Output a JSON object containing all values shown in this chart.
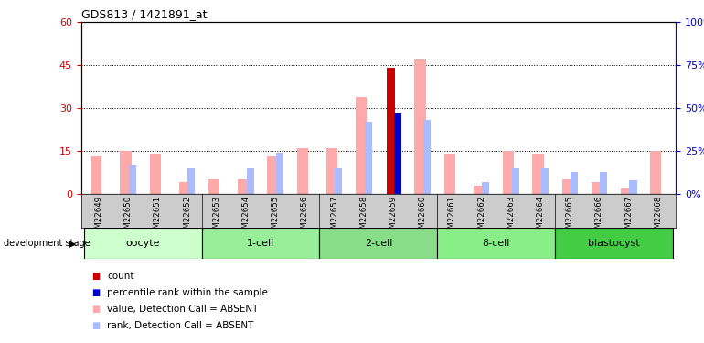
{
  "title": "GDS813 / 1421891_at",
  "samples": [
    "GSM22649",
    "GSM22650",
    "GSM22651",
    "GSM22652",
    "GSM22653",
    "GSM22654",
    "GSM22655",
    "GSM22656",
    "GSM22657",
    "GSM22658",
    "GSM22659",
    "GSM22660",
    "GSM22661",
    "GSM22662",
    "GSM22663",
    "GSM22664",
    "GSM22665",
    "GSM22666",
    "GSM22667",
    "GSM22668"
  ],
  "value_absent": [
    13,
    15,
    14,
    4,
    5,
    5,
    13,
    16,
    16,
    34,
    0,
    47,
    14,
    3,
    15,
    14,
    5,
    4,
    2,
    15
  ],
  "rank_absent_pct": [
    0,
    17,
    0,
    15,
    0,
    15,
    24,
    0,
    15,
    42,
    0,
    43,
    0,
    7,
    15,
    15,
    13,
    13,
    8,
    0
  ],
  "count_value": [
    0,
    0,
    0,
    0,
    0,
    0,
    0,
    0,
    0,
    0,
    44,
    0,
    0,
    0,
    0,
    0,
    0,
    0,
    0,
    0
  ],
  "percentile_rank_pct": [
    0,
    0,
    0,
    0,
    0,
    0,
    0,
    0,
    0,
    0,
    47,
    0,
    0,
    0,
    0,
    0,
    0,
    0,
    0,
    0
  ],
  "stages": [
    {
      "label": "oocyte",
      "start": 0,
      "end": 3,
      "color": "#ccffcc"
    },
    {
      "label": "1-cell",
      "start": 4,
      "end": 7,
      "color": "#99ee99"
    },
    {
      "label": "2-cell",
      "start": 8,
      "end": 11,
      "color": "#88dd88"
    },
    {
      "label": "8-cell",
      "start": 12,
      "end": 15,
      "color": "#88ee88"
    },
    {
      "label": "blastocyst",
      "start": 16,
      "end": 19,
      "color": "#44cc44"
    }
  ],
  "ylim_left": [
    0,
    60
  ],
  "ylim_right": [
    0,
    100
  ],
  "yticks_left": [
    0,
    15,
    30,
    45,
    60
  ],
  "yticks_right": [
    0,
    25,
    50,
    75,
    100
  ],
  "color_value_absent": "#ffaaaa",
  "color_rank_absent": "#aabbff",
  "color_count": "#cc0000",
  "color_percentile": "#0000cc",
  "color_left_axis": "#cc0000",
  "color_right_axis": "#0000cc",
  "sample_bg_color": "#cccccc",
  "legend_items": [
    {
      "color": "#cc0000",
      "label": "count"
    },
    {
      "color": "#0000cc",
      "label": "percentile rank within the sample"
    },
    {
      "color": "#ffaaaa",
      "label": "value, Detection Call = ABSENT"
    },
    {
      "color": "#aabbff",
      "label": "rank, Detection Call = ABSENT"
    }
  ]
}
